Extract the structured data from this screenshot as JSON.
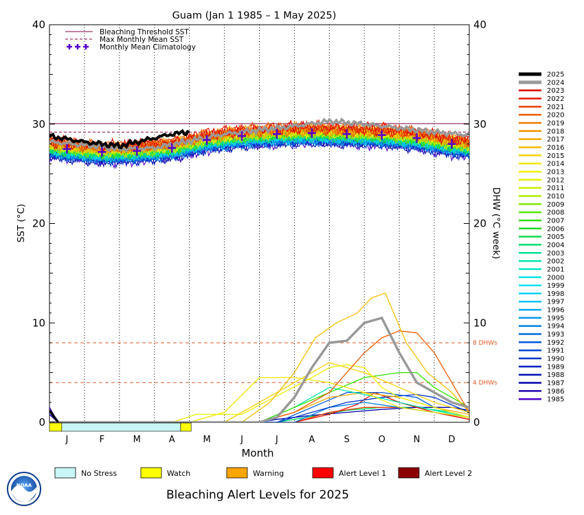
{
  "chart_data": {
    "type": "line",
    "title": "Guam      (Jan 1 1985 – 1 May 2025)",
    "xlabel": "Month",
    "ylabel_left": "SST (°C)",
    "ylabel_right": "DHW (°C week)",
    "ylim": [
      0,
      40
    ],
    "yticks": [
      0,
      10,
      20,
      30,
      40
    ],
    "months": [
      "J",
      "F",
      "M",
      "A",
      "M",
      "J",
      "J",
      "A",
      "S",
      "O",
      "N",
      "D"
    ],
    "thresholds": {
      "bleaching_threshold_sst": 30.05,
      "max_monthly_mean_sst": 29.2,
      "dhw_lines": [
        {
          "value": 8,
          "label": "8 DHWs"
        },
        {
          "value": 4,
          "label": "4 DHWs"
        }
      ]
    },
    "legend_top": [
      {
        "label": "Bleaching Threshold SST",
        "style": "solid",
        "color": "#800040"
      },
      {
        "label": "Max Monthly Mean SST",
        "style": "dashed",
        "color": "#800040"
      },
      {
        "label": "Monthly Mean Climatology",
        "style": "crosses",
        "color": "#5500cc"
      }
    ],
    "climatology": [
      27.5,
      27.2,
      27.3,
      27.6,
      28.4,
      28.8,
      29.0,
      29.1,
      29.0,
      28.9,
      28.6,
      28.0
    ],
    "years": [
      "2025",
      "2024",
      "2023",
      "2022",
      "2021",
      "2020",
      "2019",
      "2018",
      "2017",
      "2016",
      "2015",
      "2014",
      "2013",
      "2012",
      "2011",
      "2010",
      "2009",
      "2008",
      "2007",
      "2006",
      "2005",
      "2004",
      "2003",
      "2002",
      "2001",
      "2000",
      "1999",
      "1998",
      "1997",
      "1996",
      "1995",
      "1994",
      "1993",
      "1992",
      "1991",
      "1990",
      "1989",
      "1988",
      "1987",
      "1986",
      "1985"
    ],
    "year_colors": [
      "#000000",
      "#999999",
      "#d90000",
      "#e61400",
      "#e83c00",
      "#ed5a00",
      "#f07800",
      "#f59300",
      "#f5a800",
      "#f5bd00",
      "#f5d000",
      "#f0e600",
      "#f0f000",
      "#e6f000",
      "#c8f000",
      "#aaf000",
      "#82e600",
      "#55e600",
      "#30e000",
      "#1ed828",
      "#10d850",
      "#00dc6e",
      "#00e090",
      "#00e4aa",
      "#00e6c8",
      "#00e6e0",
      "#00e0f0",
      "#00d2f5",
      "#00c0f5",
      "#00aaf5",
      "#0096f0",
      "#0082e6",
      "#006ee0",
      "#005adc",
      "#0046d2",
      "#0032c8",
      "#0020c0",
      "#0010b4",
      "#0000aa",
      "#2000b0",
      "#4a00c8"
    ],
    "sst_series": [
      {
        "year": "2025",
        "x": [
          0,
          0.5,
          1,
          1.5,
          2,
          2.5,
          3,
          3.5,
          4
        ],
        "y": [
          28.8,
          28.5,
          28.2,
          28.0,
          27.8,
          28.2,
          28.6,
          29.0,
          29.2
        ]
      },
      {
        "year": "2024",
        "x": [
          0,
          1,
          2,
          3,
          4,
          5,
          6,
          7,
          8,
          9,
          10,
          11,
          12
        ],
        "y": [
          28.2,
          27.9,
          27.5,
          27.6,
          28.3,
          29.0,
          29.4,
          29.8,
          30.3,
          30.0,
          29.6,
          29.2,
          28.9
        ]
      }
    ],
    "dhw_series": [
      {
        "year": "2024",
        "x": [
          0,
          1,
          2,
          3,
          4,
          5,
          6,
          6.5,
          7,
          7.5,
          8,
          8.5,
          9,
          9.5,
          10,
          10.5,
          11,
          11.5,
          12
        ],
        "y": [
          0,
          0,
          0,
          0,
          0,
          0,
          0,
          0.5,
          2.5,
          5.5,
          8.0,
          8.2,
          10.0,
          10.5,
          7.0,
          4.0,
          3.0,
          2.0,
          1.5
        ]
      },
      {
        "year": "2016",
        "x": [
          0,
          5.5,
          6.3,
          7,
          7.6,
          8.2,
          8.8,
          9.2,
          9.6,
          10.2,
          10.8,
          11.5,
          12
        ],
        "y": [
          0,
          0,
          2,
          5,
          8.5,
          10,
          11,
          12.5,
          13,
          8,
          5,
          3,
          1
        ]
      },
      {
        "year": "2020",
        "x": [
          0,
          6,
          7,
          8,
          8.5,
          9,
          9.5,
          10,
          10.5,
          11,
          11.5,
          12
        ],
        "y": [
          0,
          0,
          1,
          3,
          5,
          7,
          8.5,
          9.2,
          9,
          7,
          4,
          1
        ]
      },
      {
        "year": "2014",
        "x": [
          0,
          4,
          5,
          6,
          7,
          8,
          9,
          10,
          12
        ],
        "y": [
          0,
          0,
          1,
          4.5,
          4.5,
          4.0,
          3.0,
          1.5,
          0.5
        ]
      },
      {
        "year": "2013",
        "x": [
          0,
          3.5,
          4.2,
          5.5,
          7.5,
          8,
          8.5,
          9,
          9.5,
          10,
          11,
          12
        ],
        "y": [
          0,
          0,
          0.8,
          0.8,
          4.5,
          5.5,
          5.8,
          5.5,
          3.5,
          2.5,
          1.5,
          0.5
        ]
      },
      {
        "year": "2015",
        "x": [
          0,
          5,
          6,
          7,
          8,
          9,
          10,
          11,
          12
        ],
        "y": [
          0,
          0,
          2,
          4.0,
          6.0,
          5.0,
          3.5,
          2.0,
          1.0
        ]
      },
      {
        "year": "2007",
        "x": [
          0,
          6,
          7,
          8,
          9,
          10,
          10.5,
          11,
          12
        ],
        "y": [
          0,
          0,
          1.5,
          3.0,
          4.5,
          5.0,
          5.0,
          3.5,
          1.5
        ]
      },
      {
        "year": "2002",
        "x": [
          0,
          6,
          7,
          8,
          9,
          10,
          11,
          12
        ],
        "y": [
          0,
          0,
          1.5,
          3.5,
          2.8,
          2.0,
          1.2,
          0.5
        ]
      },
      {
        "year": "2017",
        "x": [
          0,
          6,
          7,
          8,
          9,
          10,
          11,
          12
        ],
        "y": [
          0,
          0,
          1.0,
          2.5,
          3.0,
          2.5,
          1.5,
          0.8
        ]
      },
      {
        "year": "1992",
        "x": [
          0,
          6.5,
          7.5,
          8.5,
          9.5,
          10.5,
          11,
          12
        ],
        "y": [
          0,
          0,
          1.5,
          3.0,
          3.0,
          2.5,
          1.5,
          0.5
        ]
      },
      {
        "year": "1990",
        "x": [
          0,
          6.5,
          7.5,
          8.5,
          9.5,
          10.5,
          11,
          12
        ],
        "y": [
          0,
          0,
          1.0,
          2.0,
          2.5,
          2.8,
          2.5,
          1.0
        ]
      },
      {
        "year": "1994",
        "x": [
          0,
          7,
          8,
          9,
          10,
          11,
          12
        ],
        "y": [
          0,
          0,
          1.5,
          2.0,
          1.5,
          1.0,
          0.5
        ]
      },
      {
        "year": "2022",
        "x": [
          0,
          7,
          8,
          8.8,
          9.3,
          10,
          11,
          12
        ],
        "y": [
          0,
          0,
          0.8,
          1.8,
          3.0,
          2.0,
          1.0,
          0.3
        ]
      },
      {
        "year": "2021",
        "x": [
          0,
          7,
          8,
          9,
          10,
          11,
          12
        ],
        "y": [
          0,
          0,
          1.0,
          1.5,
          1.5,
          1.0,
          0.3
        ]
      },
      {
        "year": "1987",
        "x": [
          0,
          6,
          6.5,
          7.5,
          8.5,
          9.5,
          10.5,
          11.5,
          12
        ],
        "y": [
          0,
          0,
          0.3,
          0.7,
          1.0,
          1.3,
          1.5,
          1.5,
          1.2
        ]
      },
      {
        "year": "2004",
        "x": [
          0,
          6.5,
          7.5,
          8.5,
          9.5,
          10.5,
          11.5,
          12
        ],
        "y": [
          0,
          0,
          0.6,
          1.2,
          1.5,
          1.5,
          1.0,
          0.5
        ]
      }
    ],
    "dhw_start": {
      "2025": 1.2,
      "1985": 1.5,
      "1986": 0.8
    },
    "alert_bar": [
      {
        "from": 0,
        "to": 0.35,
        "level": "Watch"
      },
      {
        "from": 0.35,
        "to": 3.75,
        "level": "No Stress"
      },
      {
        "from": 3.75,
        "to": 4.05,
        "level": "Watch"
      }
    ],
    "alert_legend": [
      {
        "label": "No Stress",
        "color": "#c8f5f5"
      },
      {
        "label": "Watch",
        "color": "#ffff00"
      },
      {
        "label": "Warning",
        "color": "#ffa500"
      },
      {
        "label": "Alert Level 1",
        "color": "#ff0000"
      },
      {
        "label": "Alert Level 2",
        "color": "#8b0000"
      }
    ],
    "footer_title": "Bleaching Alert Levels for 2025",
    "logo_text": "NOAA"
  }
}
